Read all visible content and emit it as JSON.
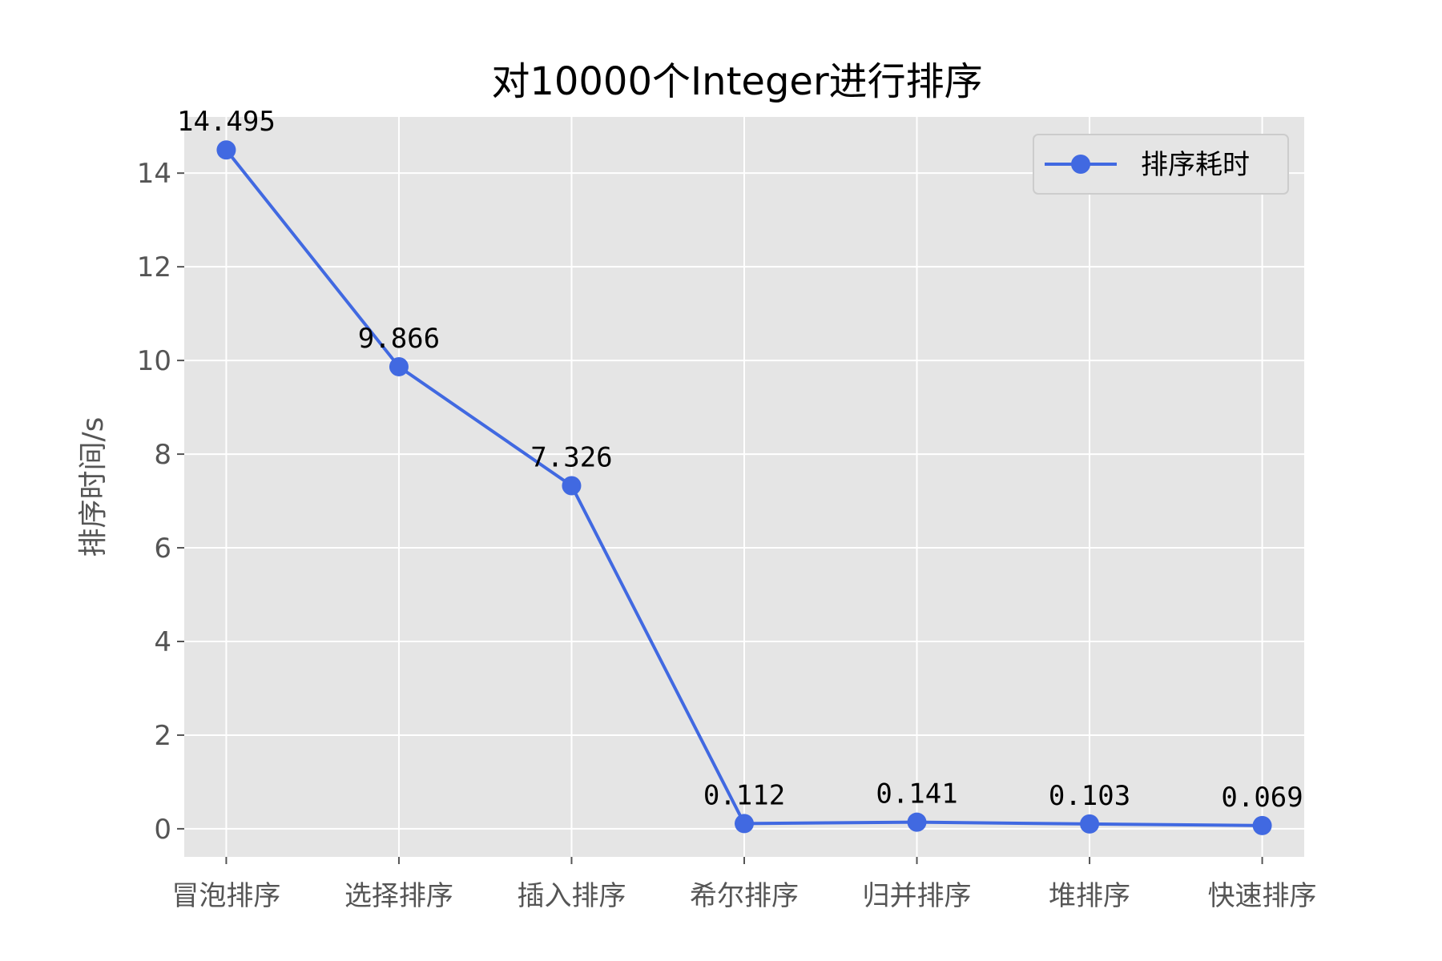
{
  "chart_data": {
    "type": "line",
    "title": "对10000个Integer进行排序",
    "xlabel": "",
    "ylabel": "排序时间/s",
    "categories": [
      "冒泡排序",
      "选择排序",
      "插入排序",
      "希尔排序",
      "归并排序",
      "堆排序",
      "快速排序"
    ],
    "series": [
      {
        "name": "排序耗时",
        "values": [
          14.495,
          9.866,
          7.326,
          0.112,
          0.141,
          0.103,
          0.069
        ],
        "color": "#4169E1"
      }
    ],
    "data_labels": [
      "14.495",
      "9.866",
      "7.326",
      "0.112",
      "0.141",
      "0.103",
      "0.069"
    ],
    "ylim": [
      -0.6,
      15.2
    ],
    "yticks": [
      0,
      2,
      4,
      6,
      8,
      10,
      12,
      14
    ],
    "grid": true,
    "legend": "top-right",
    "background_color": "#E5E5E5"
  }
}
